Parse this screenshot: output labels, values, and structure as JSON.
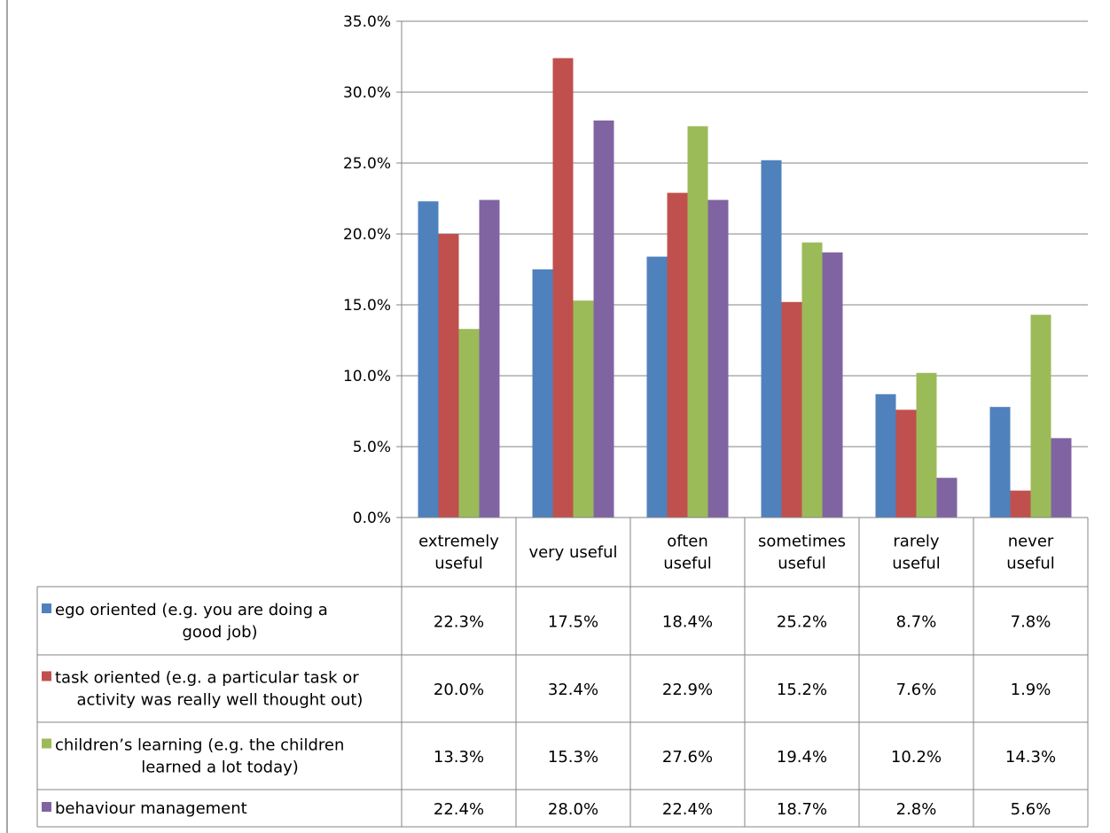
{
  "chart_data": {
    "type": "bar",
    "categories": [
      [
        "extremely",
        "useful"
      ],
      [
        "very useful"
      ],
      [
        "often",
        "useful"
      ],
      [
        "sometimes",
        "useful"
      ],
      [
        "rarely",
        "useful"
      ],
      [
        "never",
        "useful"
      ]
    ],
    "series": [
      {
        "name": [
          "ego oriented (e.g. you are doing a",
          "good job)"
        ],
        "color": "#4F81BD",
        "values": [
          22.3,
          17.5,
          18.4,
          25.2,
          8.7,
          7.8
        ],
        "labels": [
          "22.3%",
          "17.5%",
          "18.4%",
          "25.2%",
          "8.7%",
          "7.8%"
        ]
      },
      {
        "name": [
          "task oriented (e.g. a particular task or",
          "activity was really well thought out)"
        ],
        "color": "#C0504D",
        "values": [
          20.0,
          32.4,
          22.9,
          15.2,
          7.6,
          1.9
        ],
        "labels": [
          "20.0%",
          "32.4%",
          "22.9%",
          "15.2%",
          "7.6%",
          "1.9%"
        ]
      },
      {
        "name": [
          "children’s learning (e.g. the children",
          "learned a lot today)"
        ],
        "color": "#9BBB59",
        "values": [
          13.3,
          15.3,
          27.6,
          19.4,
          10.2,
          14.3
        ],
        "labels": [
          "13.3%",
          "15.3%",
          "27.6%",
          "19.4%",
          "10.2%",
          "14.3%"
        ]
      },
      {
        "name": [
          "behaviour management"
        ],
        "color": "#8064A2",
        "values": [
          22.4,
          28.0,
          22.4,
          18.7,
          2.8,
          5.6
        ],
        "labels": [
          "22.4%",
          "28.0%",
          "22.4%",
          "18.7%",
          "2.8%",
          "5.6%"
        ]
      }
    ],
    "ylim": [
      0,
      35
    ],
    "yticks": [
      "0.0%",
      "5.0%",
      "10.0%",
      "15.0%",
      "20.0%",
      "25.0%",
      "30.0%",
      "35.0%"
    ],
    "grid": true,
    "legend": "data-table"
  }
}
